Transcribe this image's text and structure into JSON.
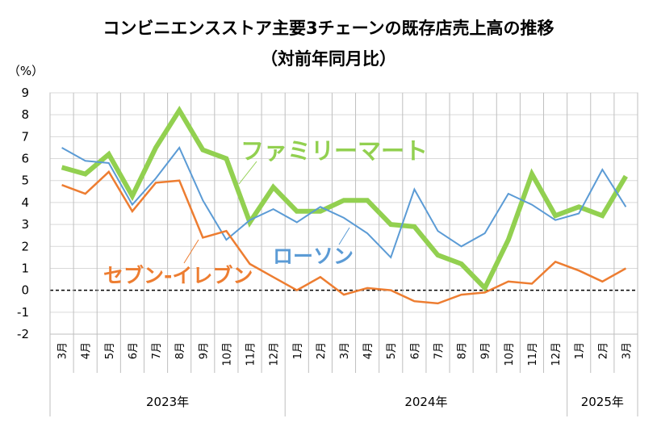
{
  "title": "コンビニエンスストア主要3チェーンの既存店売上高の推移",
  "subtitle": "（対前年同月比）",
  "chart_data": {
    "type": "line",
    "ylabel": "（%）",
    "ylim": [
      -2,
      9
    ],
    "yticks": [
      9,
      8,
      7,
      6,
      5,
      4,
      3,
      2,
      1,
      0,
      -1,
      -2
    ],
    "grid": true,
    "zero_line": "dashed",
    "categories": [
      "3月",
      "4月",
      "5月",
      "6月",
      "7月",
      "8月",
      "9月",
      "10月",
      "11月",
      "12月",
      "1月",
      "2月",
      "3月",
      "4月",
      "5月",
      "6月",
      "7月",
      "8月",
      "9月",
      "10月",
      "11月",
      "12月",
      "1月",
      "2月",
      "3月"
    ],
    "years": [
      {
        "label": "2023年",
        "start": 0,
        "end": 9
      },
      {
        "label": "2024年",
        "start": 10,
        "end": 21
      },
      {
        "label": "2025年",
        "start": 22,
        "end": 24
      }
    ],
    "series": [
      {
        "name": "ファミリーマート",
        "color": "#92d050",
        "values": [
          5.6,
          5.3,
          6.2,
          4.3,
          6.5,
          8.2,
          6.4,
          6.0,
          3.1,
          4.7,
          3.6,
          3.6,
          4.1,
          4.1,
          3.0,
          2.9,
          1.6,
          1.2,
          0.1,
          2.3,
          5.3,
          3.4,
          3.8,
          3.4,
          5.2
        ]
      },
      {
        "name": "ローソン",
        "color": "#5b9bd5",
        "values": [
          6.5,
          5.9,
          5.8,
          3.9,
          5.1,
          6.5,
          4.1,
          2.3,
          3.2,
          3.7,
          3.1,
          3.8,
          3.3,
          2.6,
          1.5,
          4.6,
          2.7,
          2.0,
          2.6,
          4.4,
          3.9,
          3.2,
          3.5,
          5.5,
          3.8
        ]
      },
      {
        "name": "セブン-イレブン",
        "color": "#ed7d31",
        "values": [
          4.8,
          4.4,
          5.4,
          3.6,
          4.9,
          5.0,
          2.4,
          2.7,
          1.2,
          0.6,
          0.0,
          0.6,
          -0.2,
          0.1,
          0.0,
          -0.5,
          -0.6,
          -0.2,
          -0.1,
          0.4,
          0.3,
          1.3,
          0.9,
          0.4,
          1.0
        ]
      }
    ]
  }
}
